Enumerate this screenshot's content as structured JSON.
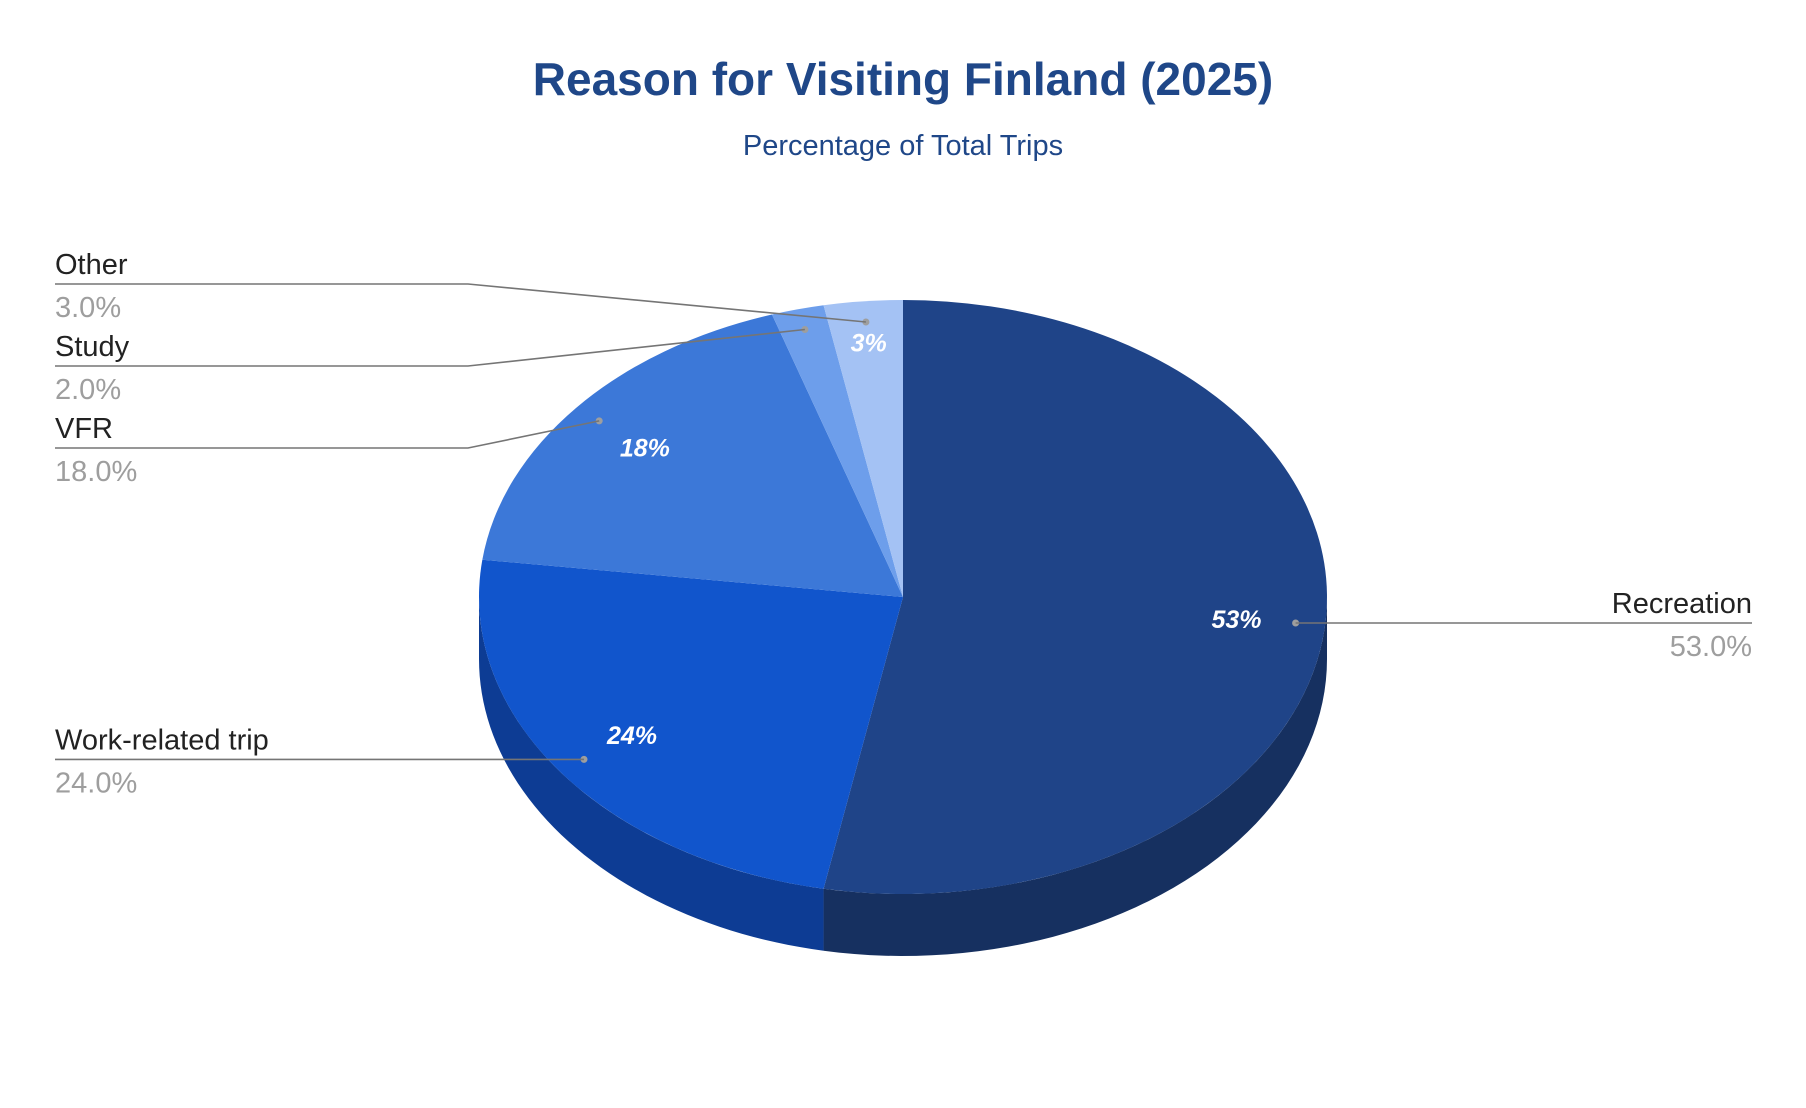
{
  "chart_data": {
    "type": "pie",
    "title": "Reason for Visiting Finland (2025)",
    "subtitle": "Percentage of Total Trips",
    "style": "3d",
    "slices": [
      {
        "label": "Recreation",
        "value": 53.0,
        "value_label": "53.0%",
        "pct_label": "53%",
        "color": "#1f4488",
        "side_color": "#163060"
      },
      {
        "label": "Work-related trip",
        "value": 24.0,
        "value_label": "24.0%",
        "pct_label": "24%",
        "color": "#1155cc",
        "side_color": "#0d3c94"
      },
      {
        "label": "VFR",
        "value": 18.0,
        "value_label": "18.0%",
        "pct_label": "18%",
        "color": "#3c78d8",
        "side_color": "#2b58a0"
      },
      {
        "label": "Study",
        "value": 2.0,
        "value_label": "2.0%",
        "pct_label": "",
        "color": "#6d9eeb",
        "side_color": "#5077b5"
      },
      {
        "label": "Other",
        "value": 3.0,
        "value_label": "3.0%",
        "pct_label": "3%",
        "color": "#a4c2f4",
        "side_color": "#7f98c4"
      }
    ]
  }
}
